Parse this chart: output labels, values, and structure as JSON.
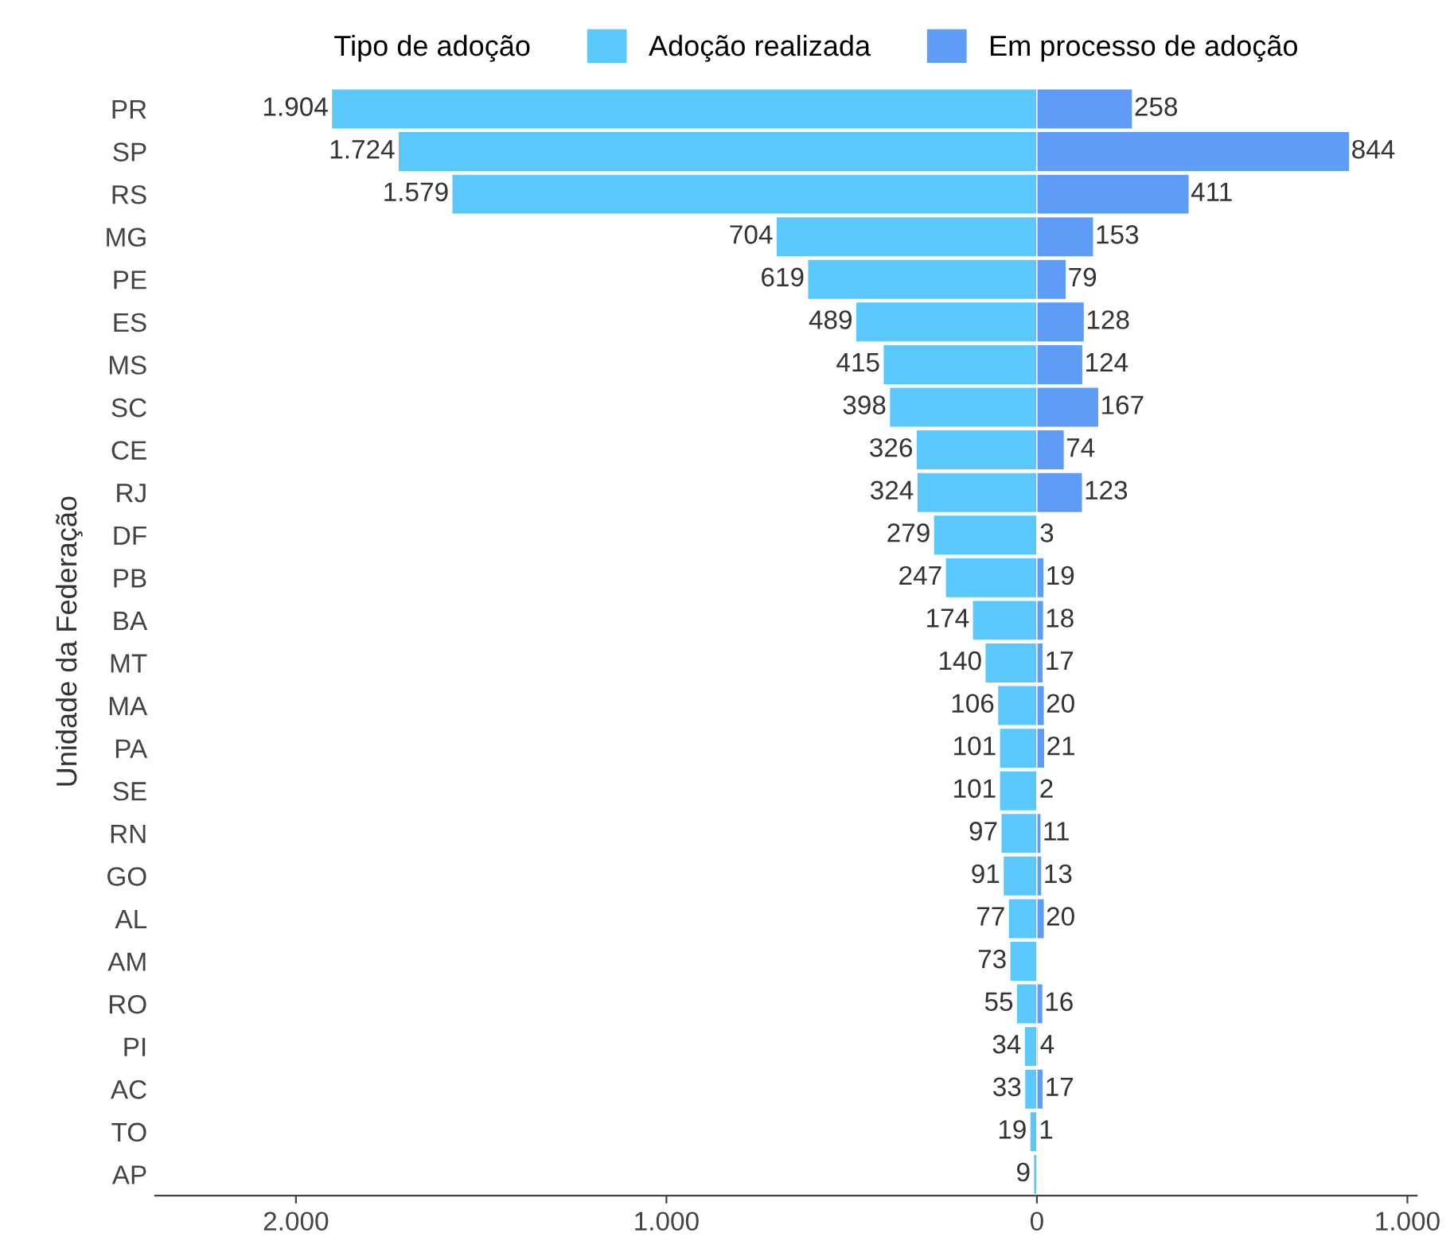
{
  "chart_data": {
    "type": "bar",
    "orientation": "horizontal",
    "ylabel": "Unidade da Federação",
    "legend_title": "Tipo de adoção",
    "legend": "top",
    "categories": [
      "PR",
      "SP",
      "RS",
      "MG",
      "PE",
      "ES",
      "MS",
      "SC",
      "CE",
      "RJ",
      "DF",
      "PB",
      "BA",
      "MT",
      "MA",
      "PA",
      "SE",
      "RN",
      "GO",
      "AL",
      "AM",
      "RO",
      "PI",
      "AC",
      "TO",
      "AP"
    ],
    "series": [
      {
        "name": "Adoção realizada",
        "color": "#5ac8fa",
        "values": [
          1904,
          1724,
          1579,
          704,
          619,
          489,
          415,
          398,
          326,
          324,
          279,
          247,
          174,
          140,
          106,
          101,
          101,
          97,
          91,
          77,
          73,
          55,
          34,
          33,
          19,
          9
        ],
        "base": [
          -1904,
          -1724,
          -1579,
          -704,
          -619,
          -489,
          -415,
          -398,
          -326,
          -324,
          -279,
          -247,
          -174,
          -140,
          -106,
          -101,
          -101,
          -97,
          -91,
          -77,
          -73,
          -55,
          -34,
          -33,
          -19,
          -9
        ],
        "value_labels": [
          "1.904",
          "1.724",
          "1.579",
          "704",
          "619",
          "489",
          "415",
          "398",
          "326",
          "324",
          "279",
          "247",
          "174",
          "140",
          "106",
          "101",
          "101",
          "97",
          "91",
          "77",
          "73",
          "55",
          "34",
          "33",
          "19",
          "9"
        ]
      },
      {
        "name": "Em processo de adoção",
        "color": "#5e9cf8",
        "values": [
          258,
          844,
          411,
          153,
          79,
          128,
          124,
          167,
          74,
          123,
          3,
          19,
          18,
          17,
          20,
          21,
          2,
          11,
          13,
          20,
          null,
          16,
          4,
          17,
          1,
          null
        ],
        "value_labels": [
          "258",
          "844",
          "411",
          "153",
          "79",
          "128",
          "124",
          "167",
          "74",
          "123",
          "3",
          "19",
          "18",
          "17",
          "20",
          "21",
          "2",
          "11",
          "13",
          "20",
          null,
          "16",
          "4",
          "17",
          "1",
          null
        ]
      }
    ],
    "xlim": [
      -2380,
      1025
    ],
    "xticks": [
      {
        "value": -2000,
        "label": "2.000"
      },
      {
        "value": -1000,
        "label": "1.000"
      },
      0,
      {
        "value": 1000,
        "label": "1.000"
      }
    ],
    "grid": false
  }
}
